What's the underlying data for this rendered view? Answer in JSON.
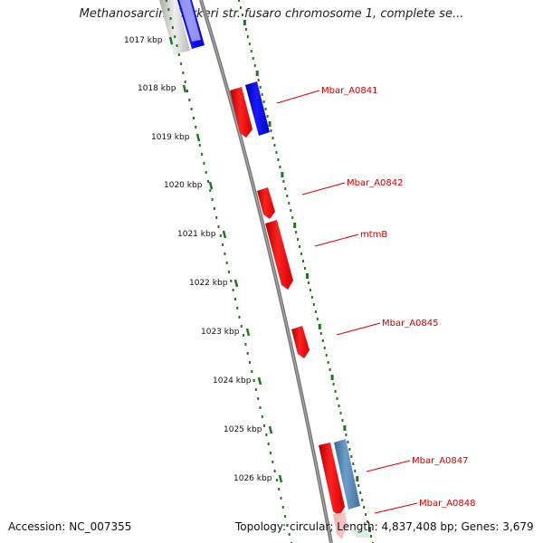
{
  "title": "Methanosarcina barkeri str. fusaro chromosome 1, complete se...",
  "footer": {
    "accession": "Accession: NC_007355",
    "stats": "Topology: circular; Length: 4,837,408 bp; Genes: 3,679"
  },
  "ticks": [
    "1017 kbp",
    "1018 kbp",
    "1019 kbp",
    "1020 kbp",
    "1021 kbp",
    "1022 kbp",
    "1023 kbp",
    "1024 kbp",
    "1025 kbp",
    "1026 kbp"
  ],
  "genes": [
    {
      "label": "Mbar_A0841",
      "color": "#dd0000"
    },
    {
      "label": "Mbar_A0842",
      "color": "#dd0000"
    },
    {
      "label": "mtmB",
      "color": "#dd0000"
    },
    {
      "label": "Mbar_A0845",
      "color": "#dd0000"
    },
    {
      "label": "Mbar_A0847",
      "color": "#dd0000"
    },
    {
      "label": "Mbar_A0848",
      "color": "#dd0000"
    }
  ],
  "colors": {
    "forward": "#ee0000",
    "reverse": "#0000ee",
    "rna": "#4a7fb5",
    "ticks": "#1a7a1a",
    "backbone": "#777777"
  }
}
